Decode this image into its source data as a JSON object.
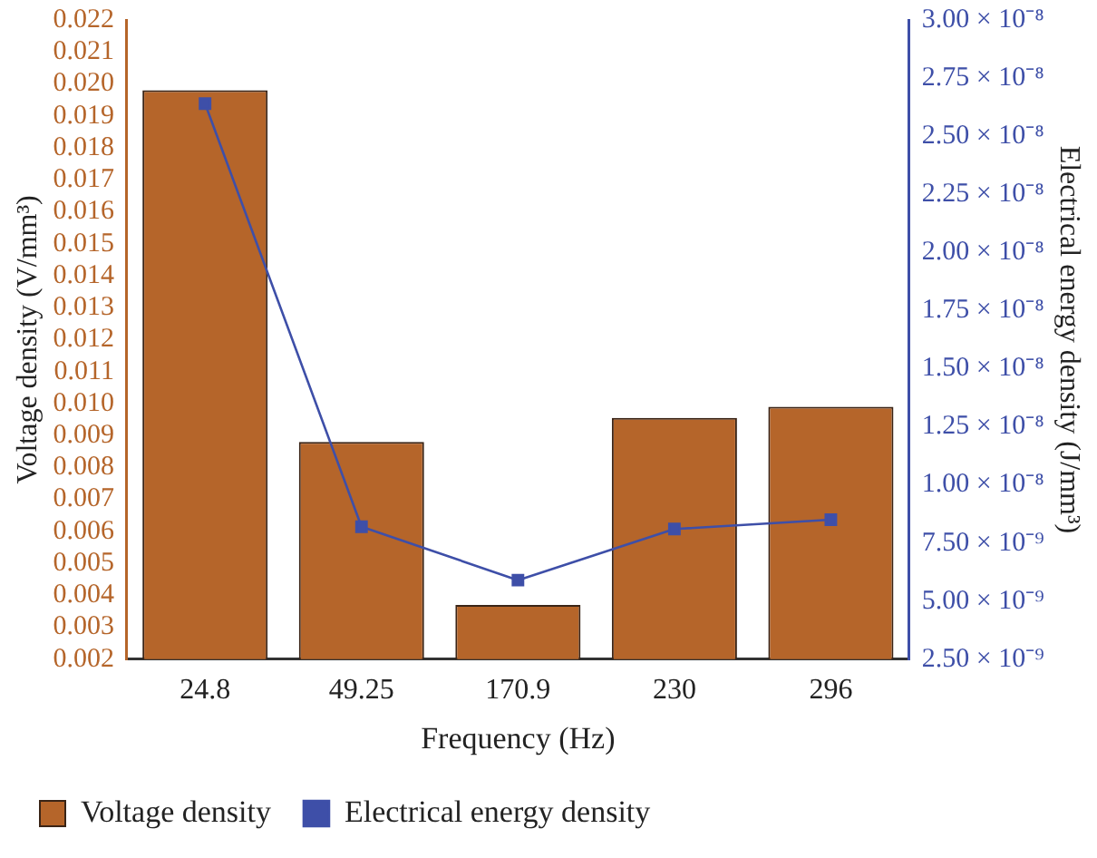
{
  "chart_data": {
    "type": "bar",
    "xlabel": "Frequency (Hz)",
    "ylabel": "Voltage density (V/mm³)",
    "y2label": "Electrical energy density (J/mm³)",
    "categories": [
      "24.8",
      "49.25",
      "170.9",
      "230",
      "296"
    ],
    "series": [
      {
        "name": "Voltage density",
        "color": "#b5652a",
        "values": [
          0.0198,
          0.0088,
          0.0037,
          0.00955,
          0.0099
        ]
      },
      {
        "name": "Electrical energy density",
        "type": "line",
        "axis": "y2",
        "color": "#3e4fa8",
        "marker": "square",
        "values": [
          2.64e-08,
          8.2e-09,
          5.9e-09,
          8.1e-09,
          8.5e-09
        ]
      }
    ],
    "ylim": [
      0.002,
      0.022
    ],
    "yticks": [
      0.002,
      0.003,
      0.004,
      0.005,
      0.006,
      0.007,
      0.008,
      0.009,
      {
        "value": 0.01,
        "label": "0.010"
      },
      0.011,
      0.012,
      0.013,
      0.014,
      0.015,
      0.016,
      0.017,
      0.018,
      0.019,
      {
        "value": 0.02,
        "label": "0.020"
      },
      0.021,
      0.022
    ],
    "y2lim": [
      2.5e-09,
      3e-08
    ],
    "y2ticks": [
      {
        "value": 2.5e-09,
        "label": "2.50 × 10⁻⁹"
      },
      {
        "value": 5e-09,
        "label": "5.00 × 10⁻⁹"
      },
      {
        "value": 7.5e-09,
        "label": "7.50 × 10⁻⁹"
      },
      {
        "value": 1e-08,
        "label": "1.00 × 10⁻⁸"
      },
      {
        "value": 1.25e-08,
        "label": "1.25 × 10⁻⁸"
      },
      {
        "value": 1.5e-08,
        "label": "1.50 × 10⁻⁸"
      },
      {
        "value": 1.75e-08,
        "label": "1.75 × 10⁻⁸"
      },
      {
        "value": 2e-08,
        "label": "2.00 × 10⁻⁸"
      },
      {
        "value": 2.25e-08,
        "label": "2.25 × 10⁻⁸"
      },
      {
        "value": 2.5e-08,
        "label": "2.50 × 10⁻⁸"
      },
      {
        "value": 2.75e-08,
        "label": "2.75 × 10⁻⁸"
      },
      {
        "value": 3e-08,
        "label": "3.00 × 10⁻⁸"
      }
    ],
    "grid": false,
    "legend": "bottom"
  }
}
